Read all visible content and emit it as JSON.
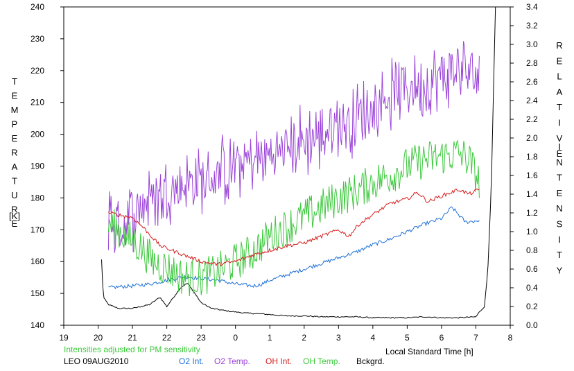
{
  "chart_data": {
    "type": "line",
    "left_axis": {
      "label_letters": [
        "T",
        "E",
        "M",
        "P",
        "E",
        "R",
        "A",
        "T",
        "U",
        "R",
        "E"
      ],
      "unit": "[K]",
      "ylim": [
        140,
        240
      ],
      "ticks": [
        "140",
        "150",
        "160",
        "170",
        "180",
        "190",
        "200",
        "210",
        "220",
        "230",
        "240"
      ]
    },
    "right_axis": {
      "label_letters_1": [
        "R",
        "E",
        "L",
        "A",
        "T",
        "I",
        "V",
        "E"
      ],
      "label_letters_2": [
        "I",
        "N",
        "T",
        "E",
        "N",
        "S",
        "I",
        "T",
        "Y"
      ],
      "ylim": [
        0.0,
        3.4
      ],
      "ticks": [
        "0.0",
        "0.2",
        "0.4",
        "0.6",
        "0.8",
        "1.0",
        "1.2",
        "1.4",
        "1.6",
        "1.8",
        "2.0",
        "2.2",
        "2.4",
        "2.6",
        "2.8",
        "3.0",
        "3.2",
        "3.4"
      ]
    },
    "x_axis": {
      "label": "Local Standard Time [h]",
      "xlim": [
        19,
        32
      ],
      "tick_values": [
        19,
        20,
        21,
        22,
        23,
        24,
        25,
        26,
        27,
        28,
        29,
        30,
        31,
        32
      ],
      "tick_labels": [
        "19",
        "20",
        "21",
        "22",
        "23",
        "0",
        "1",
        "2",
        "3",
        "4",
        "5",
        "6",
        "7",
        "8"
      ]
    },
    "annotation": "Intensities adjusted for PM sensitivity",
    "station_label": "LEO 09AUG2010",
    "x_start": 20.3,
    "x_end": 31.1,
    "series": [
      {
        "name": "O2 Int.",
        "axis": "right",
        "color": "#1c6fd8",
        "noise": 0.02,
        "points": [
          [
            20.3,
            0.4
          ],
          [
            20.6,
            0.41
          ],
          [
            21.0,
            0.42
          ],
          [
            21.5,
            0.44
          ],
          [
            22.0,
            0.48
          ],
          [
            22.5,
            0.52
          ],
          [
            23.0,
            0.5
          ],
          [
            23.5,
            0.48
          ],
          [
            24.0,
            0.44
          ],
          [
            24.5,
            0.42
          ],
          [
            24.7,
            0.43
          ],
          [
            25.0,
            0.48
          ],
          [
            25.5,
            0.54
          ],
          [
            26.0,
            0.6
          ],
          [
            26.5,
            0.66
          ],
          [
            27.0,
            0.72
          ],
          [
            27.5,
            0.78
          ],
          [
            28.0,
            0.86
          ],
          [
            28.5,
            0.92
          ],
          [
            29.0,
            1.0
          ],
          [
            29.5,
            1.08
          ],
          [
            30.0,
            1.14
          ],
          [
            30.3,
            1.26
          ],
          [
            30.7,
            1.1
          ],
          [
            31.1,
            1.12
          ]
        ]
      },
      {
        "name": "O2 Temp.",
        "axis": "left",
        "color": "#9b44d8",
        "noise": 9,
        "points": [
          [
            20.3,
            175
          ],
          [
            20.6,
            170
          ],
          [
            21.0,
            175
          ],
          [
            21.5,
            180
          ],
          [
            22.0,
            182
          ],
          [
            22.5,
            185
          ],
          [
            23.0,
            185
          ],
          [
            23.5,
            187
          ],
          [
            24.0,
            190
          ],
          [
            24.5,
            192
          ],
          [
            25.0,
            193
          ],
          [
            25.5,
            196
          ],
          [
            26.0,
            198
          ],
          [
            26.5,
            200
          ],
          [
            27.0,
            203
          ],
          [
            27.5,
            205
          ],
          [
            28.0,
            208
          ],
          [
            28.5,
            212
          ],
          [
            29.0,
            215
          ],
          [
            29.5,
            216
          ],
          [
            30.0,
            218
          ],
          [
            30.5,
            220
          ],
          [
            31.1,
            218
          ]
        ]
      },
      {
        "name": "OH Int.",
        "axis": "right",
        "color": "#d81c1c",
        "noise": 0.02,
        "points": [
          [
            20.3,
            1.2
          ],
          [
            21.0,
            1.15
          ],
          [
            21.3,
            1.05
          ],
          [
            21.8,
            0.85
          ],
          [
            22.5,
            0.75
          ],
          [
            23.0,
            0.68
          ],
          [
            23.5,
            0.65
          ],
          [
            24.0,
            0.68
          ],
          [
            24.5,
            0.75
          ],
          [
            25.0,
            0.8
          ],
          [
            25.5,
            0.85
          ],
          [
            26.0,
            0.88
          ],
          [
            26.5,
            0.95
          ],
          [
            27.0,
            1.02
          ],
          [
            27.3,
            0.95
          ],
          [
            27.6,
            1.08
          ],
          [
            28.0,
            1.18
          ],
          [
            28.5,
            1.3
          ],
          [
            29.0,
            1.35
          ],
          [
            29.3,
            1.42
          ],
          [
            29.6,
            1.32
          ],
          [
            30.0,
            1.38
          ],
          [
            30.5,
            1.45
          ],
          [
            30.8,
            1.4
          ],
          [
            31.1,
            1.45
          ]
        ]
      },
      {
        "name": "OH Temp.",
        "axis": "left",
        "color": "#3cc83c",
        "noise": 6,
        "points": [
          [
            20.3,
            172
          ],
          [
            20.8,
            168
          ],
          [
            21.2,
            165
          ],
          [
            21.6,
            160
          ],
          [
            22.0,
            158
          ],
          [
            22.5,
            155
          ],
          [
            23.0,
            155
          ],
          [
            23.5,
            157
          ],
          [
            24.0,
            160
          ],
          [
            24.5,
            163
          ],
          [
            25.0,
            168
          ],
          [
            25.5,
            171
          ],
          [
            26.0,
            174
          ],
          [
            26.5,
            177
          ],
          [
            27.0,
            180
          ],
          [
            27.5,
            182
          ],
          [
            28.0,
            185
          ],
          [
            28.5,
            187
          ],
          [
            29.0,
            190
          ],
          [
            29.5,
            192
          ],
          [
            30.0,
            193
          ],
          [
            30.5,
            194
          ],
          [
            30.8,
            192
          ],
          [
            31.1,
            185
          ]
        ]
      },
      {
        "name": "Bckgrd.",
        "axis": "right",
        "color": "#000000",
        "noise": 0.006,
        "points": [
          [
            20.1,
            0.7
          ],
          [
            20.15,
            0.3
          ],
          [
            20.3,
            0.22
          ],
          [
            20.6,
            0.18
          ],
          [
            21.0,
            0.18
          ],
          [
            21.5,
            0.22
          ],
          [
            21.8,
            0.3
          ],
          [
            22.0,
            0.2
          ],
          [
            22.2,
            0.3
          ],
          [
            22.4,
            0.4
          ],
          [
            22.6,
            0.45
          ],
          [
            22.8,
            0.35
          ],
          [
            23.0,
            0.24
          ],
          [
            23.3,
            0.18
          ],
          [
            23.8,
            0.15
          ],
          [
            24.3,
            0.13
          ],
          [
            24.8,
            0.12
          ],
          [
            25.5,
            0.1
          ],
          [
            26.0,
            0.1
          ],
          [
            26.5,
            0.09
          ],
          [
            27.0,
            0.09
          ],
          [
            27.5,
            0.09
          ],
          [
            28.0,
            0.08
          ],
          [
            28.5,
            0.08
          ],
          [
            29.0,
            0.08
          ],
          [
            29.5,
            0.09
          ],
          [
            30.0,
            0.08
          ],
          [
            30.5,
            0.08
          ],
          [
            31.0,
            0.09
          ],
          [
            31.1,
            0.14
          ],
          [
            31.25,
            0.2
          ],
          [
            31.35,
            0.6
          ],
          [
            31.45,
            1.5
          ],
          [
            31.52,
            2.6
          ],
          [
            31.55,
            3.1
          ],
          [
            31.57,
            3.4
          ]
        ]
      }
    ]
  }
}
